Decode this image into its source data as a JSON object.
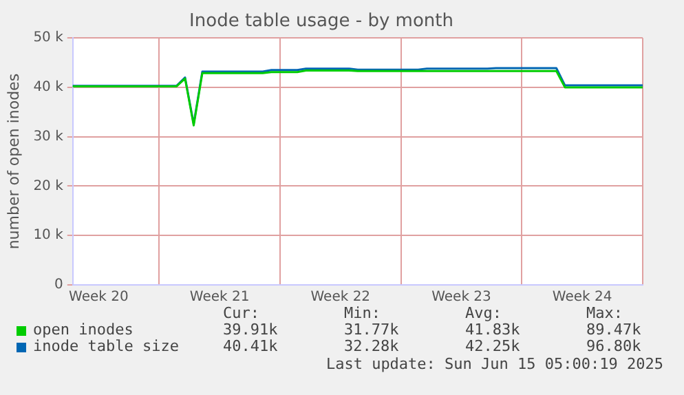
{
  "chart_data": {
    "type": "line",
    "title": "Inode table usage - by month",
    "ylabel": "number of open inodes",
    "categories": [
      null,
      null,
      null,
      "Week 20",
      null,
      null,
      null,
      null,
      null,
      null,
      null,
      null,
      null,
      null,
      null,
      null,
      null,
      "Week 21",
      null,
      null,
      null,
      null,
      null,
      null,
      null,
      null,
      null,
      null,
      null,
      null,
      null,
      "Week 22",
      null,
      null,
      null,
      null,
      null,
      null,
      null,
      null,
      null,
      null,
      null,
      null,
      null,
      "Week 23",
      null,
      null,
      null,
      null,
      null,
      null,
      null,
      null,
      null,
      null,
      null,
      null,
      null,
      "Week 24",
      null,
      null,
      null,
      null,
      null,
      null,
      null
    ],
    "ylim": [
      0,
      50000
    ],
    "yticks": [
      {
        "value": 0,
        "label": "0"
      },
      {
        "value": 10000,
        "label": "10 k"
      },
      {
        "value": 20000,
        "label": "20 k"
      },
      {
        "value": 30000,
        "label": "30 k"
      },
      {
        "value": 40000,
        "label": "40 k"
      },
      {
        "value": 50000,
        "label": "50 k"
      }
    ],
    "grid": true,
    "legend": "bottom",
    "marker": "none",
    "line_style": "solid",
    "series": [
      {
        "name": "open inodes",
        "color": "#00cc00",
        "values": [
          40200,
          40200,
          40200,
          40200,
          40200,
          40200,
          40200,
          40200,
          40200,
          40200,
          40200,
          40200,
          40200,
          41800,
          32300,
          42900,
          42900,
          42900,
          42900,
          42900,
          42900,
          42900,
          42900,
          43100,
          43100,
          43100,
          43100,
          43400,
          43400,
          43400,
          43400,
          43400,
          43400,
          43300,
          43300,
          43300,
          43300,
          43300,
          43300,
          43300,
          43300,
          43300,
          43300,
          43300,
          43300,
          43300,
          43300,
          43300,
          43300,
          43300,
          43300,
          43300,
          43300,
          43300,
          43300,
          43300,
          43300,
          40000,
          40000,
          40000,
          40000,
          40000,
          40000,
          40000,
          40000,
          40000,
          40000
        ]
      },
      {
        "name": "inode table size",
        "color": "#0066b3",
        "values": [
          40300,
          40300,
          40300,
          40300,
          40300,
          40300,
          40300,
          40300,
          40300,
          40300,
          40300,
          40300,
          40300,
          42000,
          32600,
          43200,
          43200,
          43200,
          43200,
          43200,
          43200,
          43200,
          43200,
          43500,
          43500,
          43500,
          43500,
          43800,
          43800,
          43800,
          43800,
          43800,
          43800,
          43600,
          43600,
          43600,
          43600,
          43600,
          43600,
          43600,
          43600,
          43800,
          43800,
          43800,
          43800,
          43800,
          43800,
          43800,
          43800,
          43900,
          43900,
          43900,
          43900,
          43900,
          43900,
          43900,
          43900,
          40400,
          40400,
          40400,
          40400,
          40400,
          40400,
          40400,
          40400,
          40400,
          40400
        ]
      }
    ],
    "annotations": [
      "Cur:",
      "Min:",
      "Avg:",
      "Max:",
      "39.91k",
      "31.77k",
      "41.83k",
      "89.47k",
      "40.41k",
      "32.28k",
      "42.25k",
      "96.80k",
      "Last update: Sun Jun 15 05:00:19 2025"
    ]
  }
}
